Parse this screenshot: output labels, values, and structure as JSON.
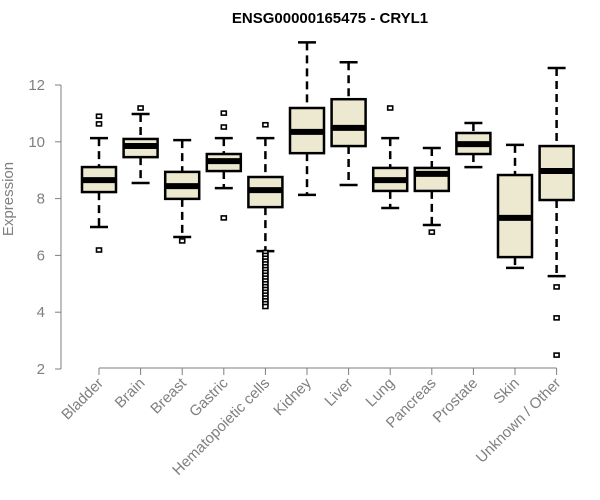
{
  "chart_data": {
    "type": "boxplot",
    "title": "ENSG00000165475 - CRYL1",
    "xlabel": "",
    "ylabel": "Expression",
    "ylim": [
      2,
      13.6
    ],
    "yticks": [
      2,
      4,
      6,
      8,
      10,
      12
    ],
    "grid": false,
    "box_color": "#ede8d0",
    "categories": [
      "Bladder",
      "Brain",
      "Breast",
      "Gastric",
      "Hematopoietic cells",
      "Kidney",
      "Liver",
      "Lung",
      "Pancreas",
      "Prostate",
      "Skin",
      "Unknown / Other"
    ],
    "series": [
      {
        "name": "Bladder",
        "whisker_low": 7.0,
        "q1": 8.23,
        "median": 8.65,
        "q3": 9.11,
        "whisker_high": 10.13,
        "outliers": [
          10.9,
          10.63,
          6.19
        ]
      },
      {
        "name": "Brain",
        "whisker_low": 8.55,
        "q1": 9.46,
        "median": 9.85,
        "q3": 10.1,
        "whisker_high": 10.98,
        "outliers": [
          11.19
        ]
      },
      {
        "name": "Breast",
        "whisker_low": 6.65,
        "q1": 7.99,
        "median": 8.44,
        "q3": 8.94,
        "whisker_high": 10.06,
        "outliers": [
          6.51
        ]
      },
      {
        "name": "Gastric",
        "whisker_low": 8.37,
        "q1": 8.97,
        "median": 9.32,
        "q3": 9.57,
        "whisker_high": 10.13,
        "outliers": [
          11.01,
          10.52,
          7.32
        ]
      },
      {
        "name": "Hematopoietic cells",
        "whisker_low": 6.15,
        "q1": 7.7,
        "median": 8.3,
        "q3": 8.76,
        "whisker_high": 10.13,
        "outliers": [
          10.6,
          6.1,
          6.0,
          5.9,
          5.8,
          5.7,
          5.6,
          5.5,
          5.4,
          5.3,
          5.2,
          5.1,
          5.0,
          4.9,
          4.8,
          4.7,
          4.6,
          4.5,
          4.4,
          4.3,
          4.2
        ]
      },
      {
        "name": "Kidney",
        "whisker_low": 8.13,
        "q1": 9.6,
        "median": 10.35,
        "q3": 11.19,
        "whisker_high": 13.5,
        "outliers": []
      },
      {
        "name": "Liver",
        "whisker_low": 8.48,
        "q1": 9.85,
        "median": 10.49,
        "q3": 11.5,
        "whisker_high": 12.8,
        "outliers": []
      },
      {
        "name": "Lung",
        "whisker_low": 7.67,
        "q1": 8.27,
        "median": 8.65,
        "q3": 9.08,
        "whisker_high": 10.13,
        "outliers": [
          11.19
        ]
      },
      {
        "name": "Pancreas",
        "whisker_low": 7.07,
        "q1": 8.27,
        "median": 8.87,
        "q3": 9.08,
        "whisker_high": 9.78,
        "outliers": [
          6.82
        ]
      },
      {
        "name": "Prostate",
        "whisker_low": 9.11,
        "q1": 9.57,
        "median": 9.92,
        "q3": 10.31,
        "whisker_high": 10.66,
        "outliers": []
      },
      {
        "name": "Skin",
        "whisker_low": 5.56,
        "q1": 5.94,
        "median": 7.32,
        "q3": 8.83,
        "whisker_high": 9.89,
        "outliers": []
      },
      {
        "name": "Unknown / Other",
        "whisker_low": 5.27,
        "q1": 7.95,
        "median": 8.97,
        "q3": 9.85,
        "whisker_high": 12.6,
        "outliers": [
          4.89,
          3.8,
          2.49
        ]
      }
    ]
  }
}
